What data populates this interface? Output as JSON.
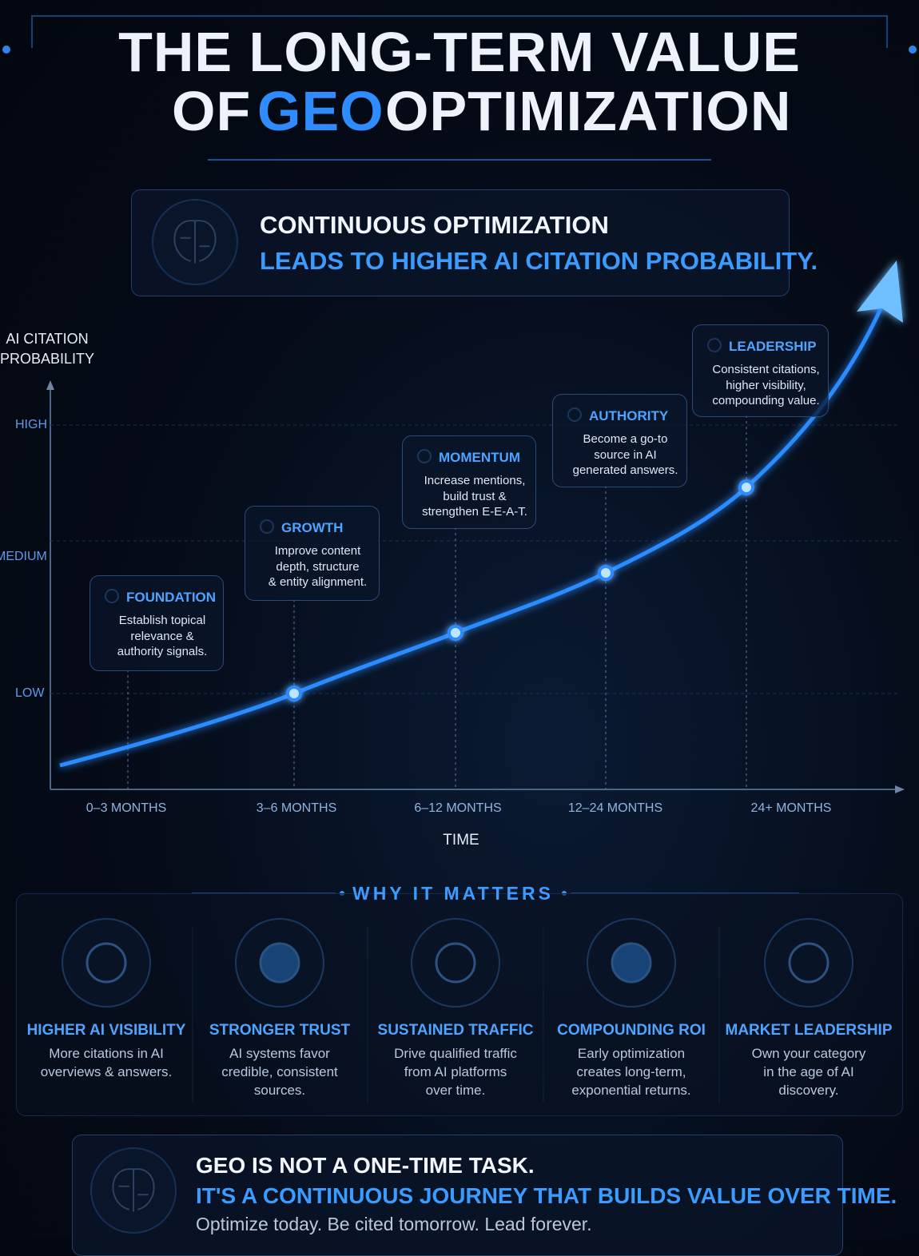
{
  "header": {
    "title_line1": "THE LONG-TERM VALUE",
    "title_line2_start": "OF",
    "title_highlight": "GEO",
    "title_line2_end": "OPTIMIZATION"
  },
  "intro": {
    "line1": "CONTINUOUS OPTIMIZATION",
    "line2": "LEADS TO HIGHER AI CITATION PROBABILITY."
  },
  "chart": {
    "y_axis_title": [
      "AI CITATION",
      "PROBABILITY"
    ],
    "y_levels": [
      "HIGH",
      "MEDIUM",
      "LOW"
    ],
    "x_categories": [
      "0–3 MONTHS",
      "3–6 MONTHS",
      "6–12 MONTHS",
      "12–24 MONTHS",
      "24+ MONTHS"
    ],
    "x_axis_title": "TIME",
    "stages": [
      {
        "title": "FOUNDATION",
        "lines": [
          "Establish topical",
          "relevance &",
          "authority signals."
        ]
      },
      {
        "title": "GROWTH",
        "lines": [
          "Improve content",
          "depth, structure",
          "& entity alignment."
        ]
      },
      {
        "title": "MOMENTUM",
        "lines": [
          "Increase mentions,",
          "build trust &",
          "strengthen E-E-A-T."
        ]
      },
      {
        "title": "AUTHORITY",
        "lines": [
          "Become a go-to",
          "source in AI",
          "generated answers."
        ]
      },
      {
        "title": "LEADERSHIP",
        "lines": [
          "Consistent citations,",
          "higher visibility,",
          "compounding value."
        ]
      }
    ]
  },
  "why": {
    "heading": "WHY IT MATTERS",
    "items": [
      {
        "title": "HIGHER AI VISIBILITY",
        "lines": [
          "More citations in AI",
          "overviews & answers."
        ]
      },
      {
        "title": "STRONGER TRUST",
        "lines": [
          "AI systems favor",
          "credible, consistent",
          "sources."
        ]
      },
      {
        "title": "SUSTAINED TRAFFIC",
        "lines": [
          "Drive qualified traffic",
          "from AI platforms",
          "over time."
        ]
      },
      {
        "title": "COMPOUNDING ROI",
        "lines": [
          "Early optimization",
          "creates long-term,",
          "exponential returns."
        ]
      },
      {
        "title": "MARKET LEADERSHIP",
        "lines": [
          "Own your category",
          "in the age of AI",
          "discovery."
        ]
      }
    ]
  },
  "footer": {
    "line1": "GEO IS NOT A ONE-TIME TASK.",
    "line2": "IT'S A CONTINUOUS JOURNEY THAT BUILDS VALUE OVER TIME.",
    "line3": "Optimize today. Be cited tomorrow. Lead forever."
  }
}
